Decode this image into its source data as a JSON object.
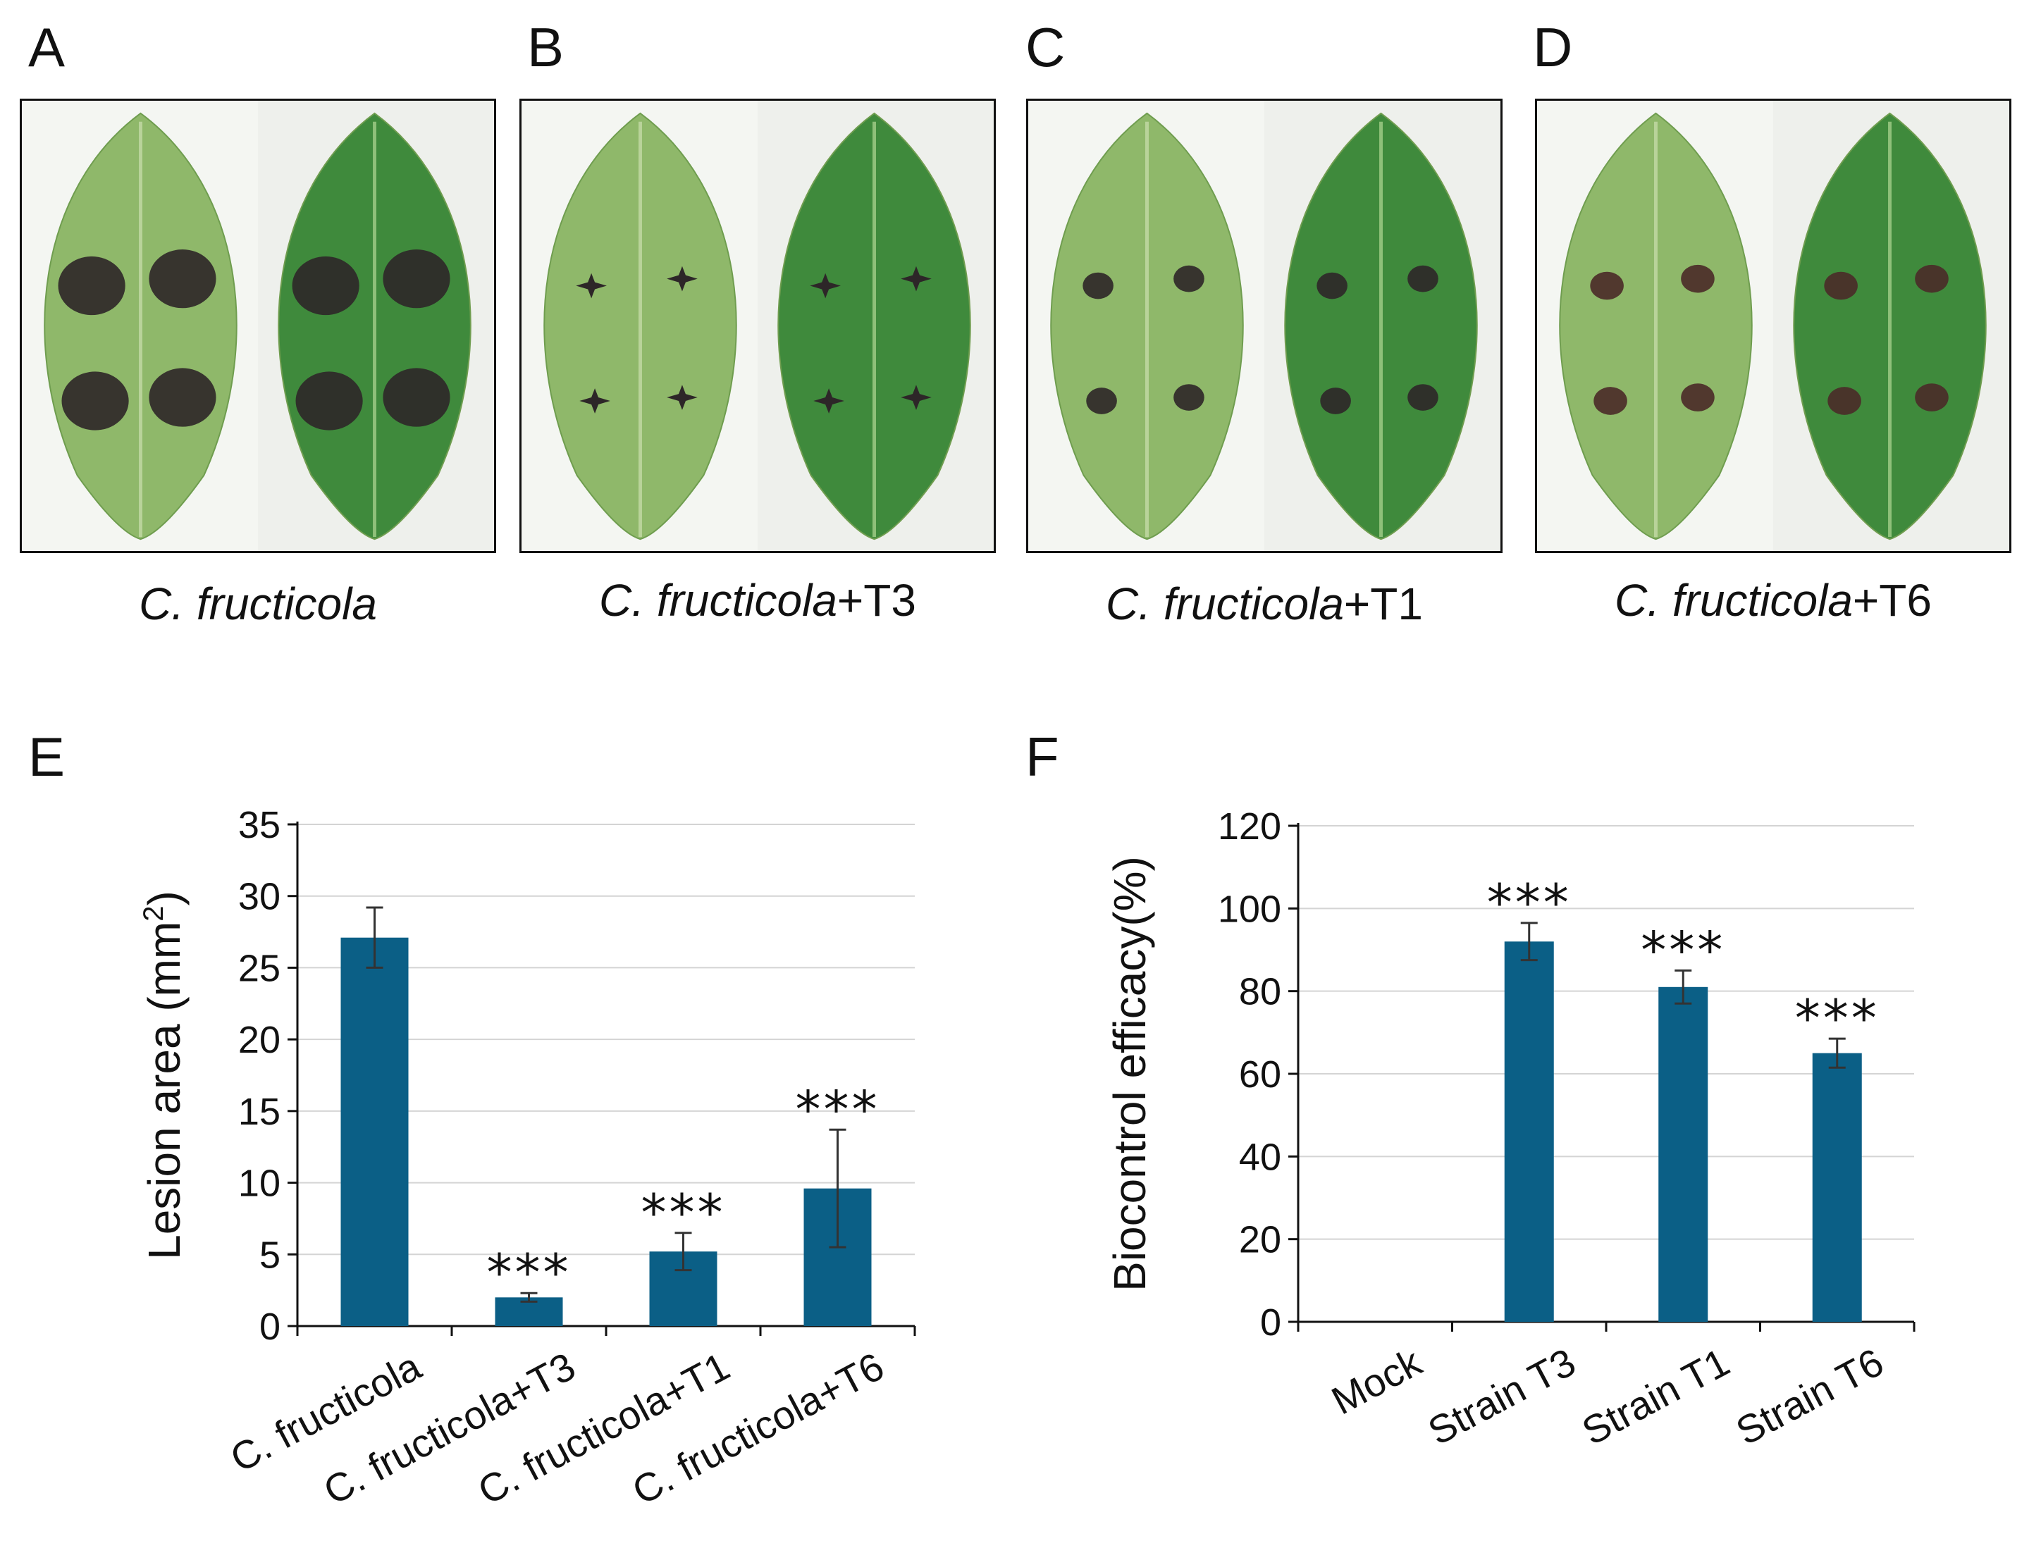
{
  "photo_panels": [
    {
      "letter": "A",
      "species": "C. fructicola",
      "suffix": "",
      "lesion_style": "large"
    },
    {
      "letter": "B",
      "species": "C. fructicola",
      "suffix": "+T3",
      "lesion_style": "star"
    },
    {
      "letter": "C",
      "species": "C. fructicola",
      "suffix": "+T1",
      "lesion_style": "small"
    },
    {
      "letter": "D",
      "species": "C. fructicola",
      "suffix": "+T6",
      "lesion_style": "small-dark"
    }
  ],
  "colors": {
    "bar": "#0b5f86",
    "leaf_light": "#8fb86a",
    "leaf_dark": "#3f8a3c",
    "lesion": "#2d2628",
    "grid": "#d4d4d4",
    "axis": "#111111"
  },
  "chart_data": [
    {
      "panel_letter": "E",
      "type": "bar",
      "title": "",
      "xlabel": "",
      "ylabel": "Lesion area (mm",
      "ylabel_sup": "2",
      "ylabel_end": ")",
      "categories": [
        "C. fructicola",
        "C. fructicola+T3",
        "C. fructicola+T1",
        "C. fructicola+T6"
      ],
      "values": [
        27.1,
        2.0,
        5.2,
        9.6
      ],
      "errors": [
        2.1,
        0.3,
        1.3,
        4.1
      ],
      "significance": [
        "",
        "***",
        "***",
        "***"
      ],
      "ylim": [
        0,
        35
      ],
      "yticks": [
        0,
        5,
        10,
        15,
        20,
        25,
        30,
        35
      ],
      "grid": true
    },
    {
      "panel_letter": "F",
      "type": "bar",
      "title": "",
      "xlabel": "",
      "ylabel": "Biocontrol efficacy(%)",
      "categories": [
        "Mock",
        "Strain T3",
        "Strain T1",
        "Strain T6"
      ],
      "values": [
        0,
        92,
        81,
        65
      ],
      "errors": [
        0,
        4.5,
        4,
        3.5
      ],
      "significance": [
        "",
        "***",
        "***",
        "***"
      ],
      "ylim": [
        0,
        120
      ],
      "yticks": [
        0,
        20,
        40,
        60,
        80,
        100,
        120
      ],
      "grid": true
    }
  ]
}
